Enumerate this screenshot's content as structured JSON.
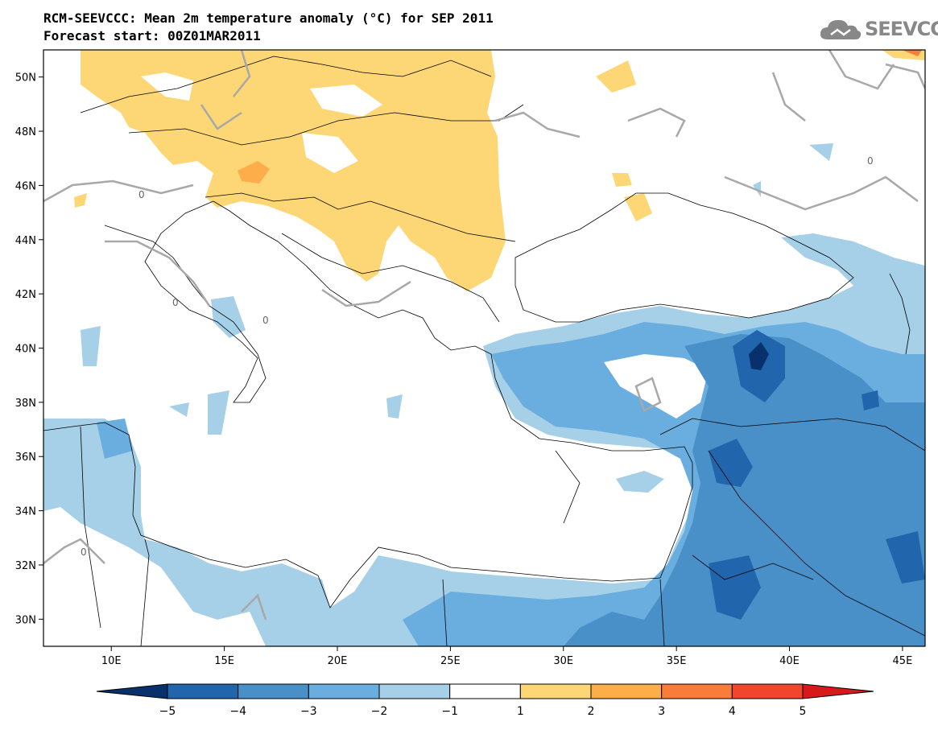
{
  "header": {
    "title": "RCM-SEEVCCC: Mean 2m temperature anomaly (°C) for SEP 2011",
    "subtitle": "Forecast start: 00Z01MAR2011",
    "logo_text": "SEEVCCC"
  },
  "map": {
    "lon_range": [
      7,
      46
    ],
    "lat_range": [
      29,
      51
    ],
    "lat_ticks": [
      "50N",
      "48N",
      "46N",
      "44N",
      "42N",
      "40N",
      "38N",
      "36N",
      "34N",
      "32N",
      "30N"
    ],
    "lon_ticks": [
      "10E",
      "15E",
      "20E",
      "25E",
      "30E",
      "35E",
      "40E",
      "45E"
    ],
    "contour_label": "0"
  },
  "colorbar": {
    "labels": [
      "−5",
      "−4",
      "−3",
      "−2",
      "−1",
      "1",
      "2",
      "3",
      "4",
      "5"
    ],
    "colors": [
      "#08306b",
      "#2166ac",
      "#4a90c8",
      "#6aaee0",
      "#a6cfe8",
      "#ffffff",
      "#fdd776",
      "#fdae4b",
      "#f87d3a",
      "#f0462c",
      "#d7191c"
    ]
  }
}
